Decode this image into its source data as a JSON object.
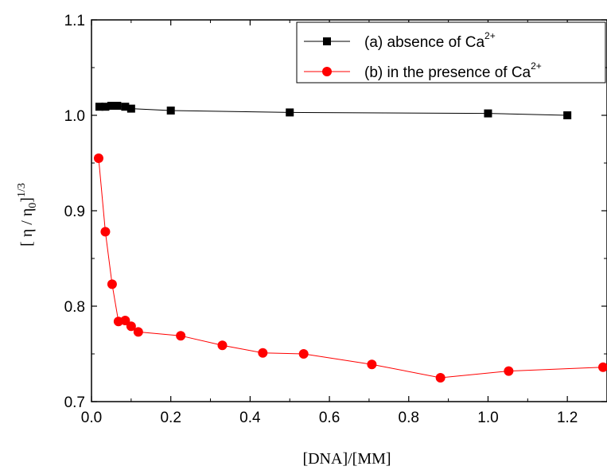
{
  "chart_data": {
    "type": "line",
    "title": "",
    "xlabel": "[DNA]/[MM]",
    "ylabel": "[ η / η",
    "ylabel_sub": "0",
    "ylabel_tail": "]",
    "ylabel_sup": "1/3",
    "xlim": [
      0.0,
      1.3
    ],
    "ylim": [
      0.7,
      1.1
    ],
    "x_ticks": [
      "0.0",
      "0.2",
      "0.4",
      "0.6",
      "0.8",
      "1.0",
      "1.2"
    ],
    "y_ticks": [
      "0.7",
      "0.8",
      "0.9",
      "1.0",
      "1.1"
    ],
    "grid": false,
    "legend_position": "top-right",
    "series": [
      {
        "name": "(a) absence of Ca",
        "name_sup": "2+",
        "color": "#000000",
        "marker": "square",
        "x": [
          0.02,
          0.035,
          0.05,
          0.065,
          0.085,
          0.1,
          0.2,
          0.5,
          1.0,
          1.2
        ],
        "y": [
          1.009,
          1.009,
          1.01,
          1.01,
          1.009,
          1.007,
          1.005,
          1.003,
          1.002,
          1.0
        ]
      },
      {
        "name": "(b) in the presence of Ca",
        "name_sup": "2+",
        "color": "#ff0000",
        "marker": "circle",
        "x": [
          0.018,
          0.035,
          0.052,
          0.068,
          0.085,
          0.1,
          0.118,
          0.225,
          0.33,
          0.432,
          0.535,
          0.707,
          0.88,
          1.052,
          1.29
        ],
        "y": [
          0.955,
          0.878,
          0.823,
          0.784,
          0.785,
          0.779,
          0.773,
          0.769,
          0.759,
          0.751,
          0.75,
          0.739,
          0.725,
          0.732,
          0.736
        ]
      }
    ]
  }
}
